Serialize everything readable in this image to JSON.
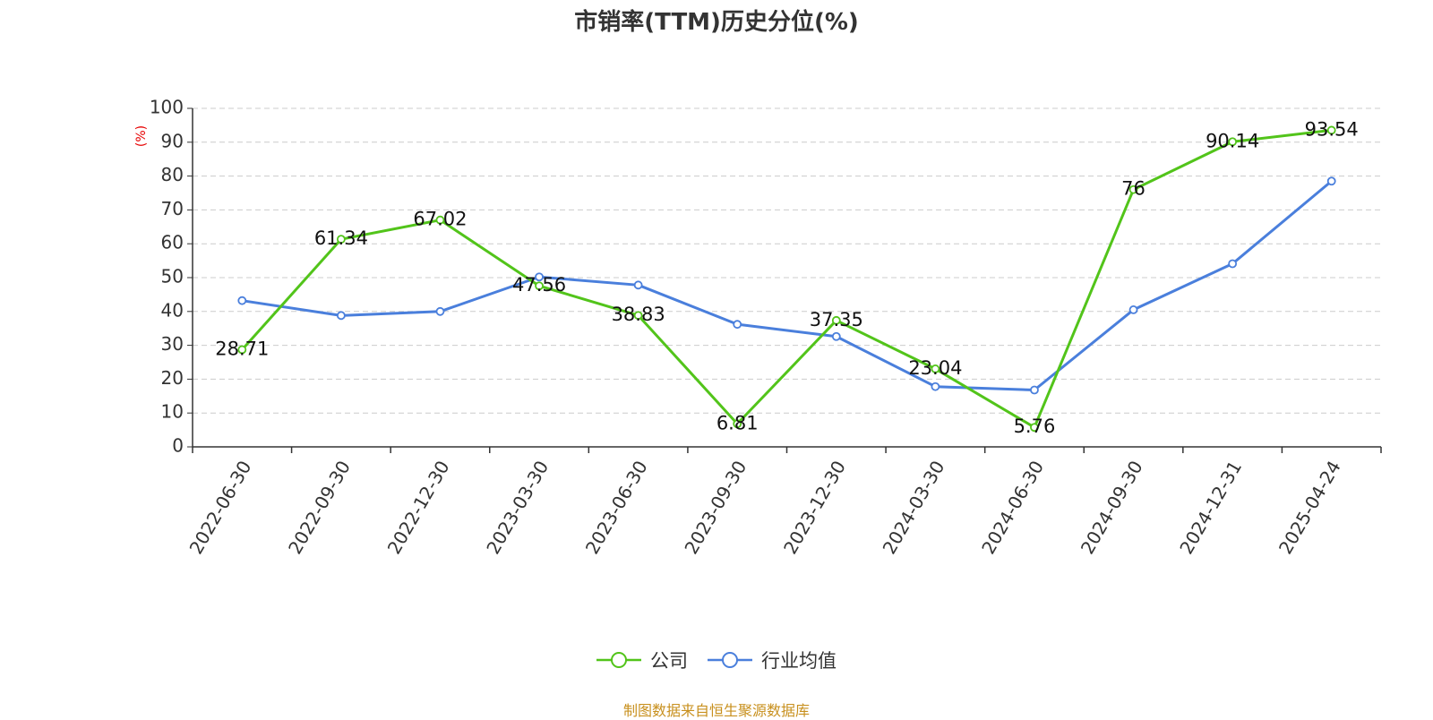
{
  "chart_data": {
    "type": "line",
    "title": "市销率(TTM)历史分位(%)",
    "ylabel": "(%)",
    "xlabel": "",
    "ylim": [
      0,
      100
    ],
    "yticks": [
      0,
      10,
      20,
      30,
      40,
      50,
      60,
      70,
      80,
      90,
      100
    ],
    "grid": true,
    "legend_position": "bottom",
    "categories": [
      "2022-06-30",
      "2022-09-30",
      "2022-12-30",
      "2023-03-30",
      "2023-06-30",
      "2023-09-30",
      "2023-12-30",
      "2024-03-30",
      "2024-06-30",
      "2024-09-30",
      "2024-12-31",
      "2025-04-24"
    ],
    "series": [
      {
        "name": "公司",
        "color": "#52c41a",
        "values": [
          28.71,
          61.34,
          67.02,
          47.56,
          38.83,
          6.81,
          37.35,
          23.04,
          5.76,
          76,
          90.14,
          93.54
        ],
        "labels": [
          "28.71",
          "61.34",
          "67.02",
          "47.56",
          "38.83",
          "6.81",
          "37.35",
          "23.04",
          "5.76",
          "76",
          "90.14",
          "93.54"
        ]
      },
      {
        "name": "行业均值",
        "color": "#4a7fdc",
        "values": [
          43.2,
          38.8,
          40.0,
          50.2,
          47.8,
          36.2,
          32.6,
          17.8,
          16.8,
          40.5,
          54.1,
          78.5
        ]
      }
    ],
    "source": "制图数据来自恒生聚源数据库",
    "source_color": "#c8901e",
    "ylabel_color": "#e60000"
  }
}
